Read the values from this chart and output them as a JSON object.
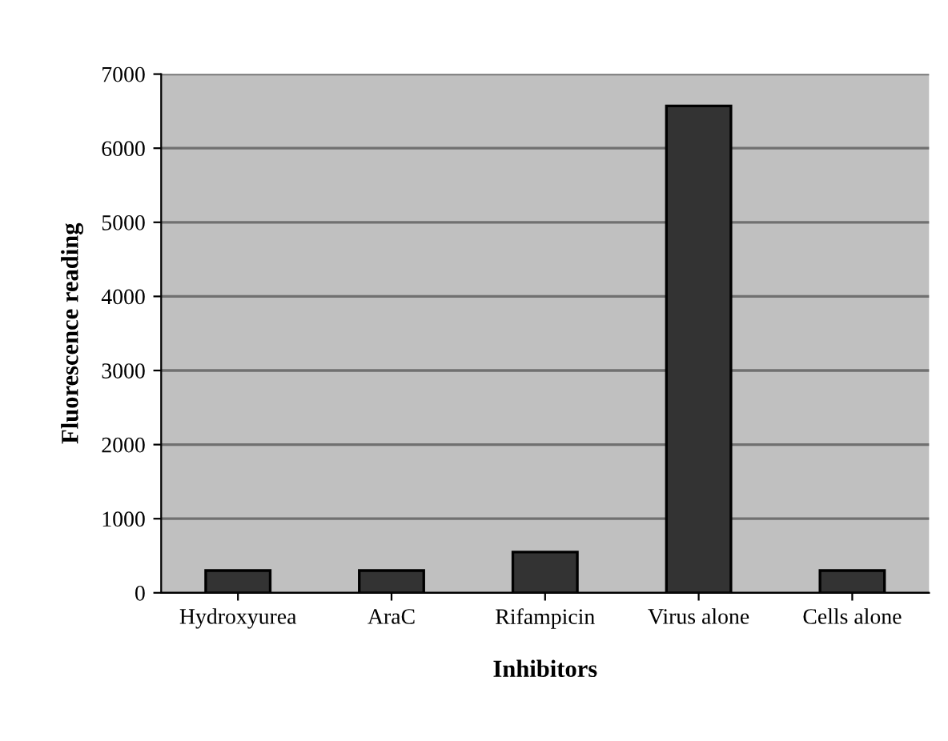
{
  "chart_data": {
    "type": "bar",
    "xlabel": "Inhibitors",
    "ylabel": "Fluorescence reading",
    "categories": [
      "Hydroxyurea",
      "AraC",
      "Rifampicin",
      "Virus alone",
      "Cells alone"
    ],
    "values": [
      300,
      300,
      550,
      6570,
      300
    ],
    "color": "#333333",
    "ylim": [
      0,
      7000
    ],
    "yticks": [
      0,
      1000,
      2000,
      3000,
      4000,
      5000,
      6000,
      7000
    ],
    "grid": "y"
  }
}
